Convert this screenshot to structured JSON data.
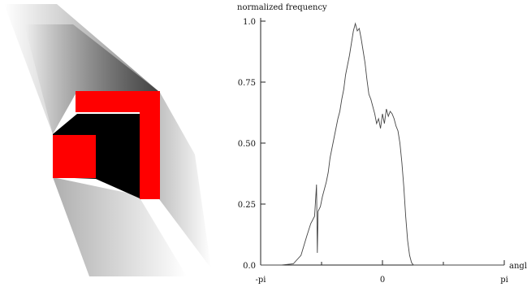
{
  "chart_data": {
    "type": "line",
    "ylabel": "normalized frequency",
    "xlabel": "angle",
    "xlim": [
      -3.14159,
      3.14159
    ],
    "ylim": [
      0,
      1
    ],
    "x_ticks": [
      {
        "value": -3.14159,
        "label": "-pi"
      },
      {
        "value": 0,
        "label": "0"
      },
      {
        "value": 3.14159,
        "label": "pi"
      }
    ],
    "y_ticks": [
      {
        "value": 0,
        "label": "0.0"
      },
      {
        "value": 0.25,
        "label": "0.25"
      },
      {
        "value": 0.5,
        "label": "0.50"
      },
      {
        "value": 0.75,
        "label": "0.75"
      },
      {
        "value": 1,
        "label": "1.0"
      }
    ],
    "grid": false,
    "series": [
      {
        "color": "#444444",
        "x": [
          -3.14,
          -2.6,
          -2.3,
          -2.1,
          -1.95,
          -1.85,
          -1.75,
          -1.7,
          -1.68,
          -1.66,
          -1.6,
          -1.55,
          -1.5,
          -1.45,
          -1.4,
          -1.35,
          -1.3,
          -1.25,
          -1.2,
          -1.15,
          -1.1,
          -1.05,
          -1.0,
          -0.95,
          -0.9,
          -0.85,
          -0.8,
          -0.75,
          -0.7,
          -0.65,
          -0.6,
          -0.55,
          -0.5,
          -0.45,
          -0.4,
          -0.35,
          -0.3,
          -0.25,
          -0.2,
          -0.15,
          -0.1,
          -0.05,
          0.0,
          0.05,
          0.1,
          0.15,
          0.2,
          0.25,
          0.3,
          0.35,
          0.4,
          0.45,
          0.5,
          0.55,
          0.6,
          0.65,
          0.7,
          0.75,
          0.8,
          0.85,
          0.9,
          0.95,
          1.0,
          1.1,
          1.3,
          1.6,
          2.0,
          3.14
        ],
        "y": [
          0.0,
          0.0,
          0.005,
          0.04,
          0.12,
          0.17,
          0.2,
          0.33,
          0.05,
          0.22,
          0.24,
          0.28,
          0.31,
          0.34,
          0.38,
          0.44,
          0.48,
          0.52,
          0.56,
          0.6,
          0.63,
          0.68,
          0.72,
          0.78,
          0.82,
          0.86,
          0.91,
          0.96,
          0.99,
          0.96,
          0.97,
          0.93,
          0.88,
          0.83,
          0.76,
          0.7,
          0.68,
          0.65,
          0.62,
          0.58,
          0.6,
          0.56,
          0.62,
          0.58,
          0.64,
          0.61,
          0.63,
          0.62,
          0.6,
          0.57,
          0.55,
          0.5,
          0.42,
          0.32,
          0.2,
          0.1,
          0.04,
          0.01,
          0.0,
          0.0,
          0.0,
          0.0,
          0.0,
          0.0,
          0.0,
          0.0,
          0.0,
          0.0
        ]
      }
    ]
  }
}
